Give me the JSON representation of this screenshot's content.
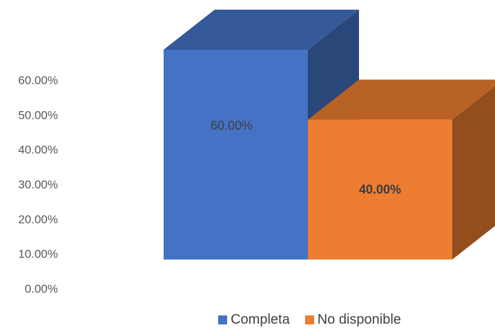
{
  "chart_data": {
    "type": "bar",
    "categories": [
      "Completa",
      "No disponible"
    ],
    "values": [
      60.0,
      40.0
    ],
    "data_labels": [
      "60.00%",
      "40.00%"
    ],
    "y_ticks": [
      "0.00%",
      "10.00%",
      "20.00%",
      "30.00%",
      "40.00%",
      "50.00%",
      "60.00%"
    ],
    "ylim": [
      0,
      60
    ],
    "grid": false,
    "legend_position": "bottom",
    "style": "3d-column",
    "colors": {
      "Completa": "#4472c4",
      "No disponible": "#ed7d31"
    }
  },
  "legend": {
    "items": [
      {
        "label": "Completa",
        "color": "#4472c4"
      },
      {
        "label": "No disponible",
        "color": "#ed7d31"
      }
    ]
  }
}
